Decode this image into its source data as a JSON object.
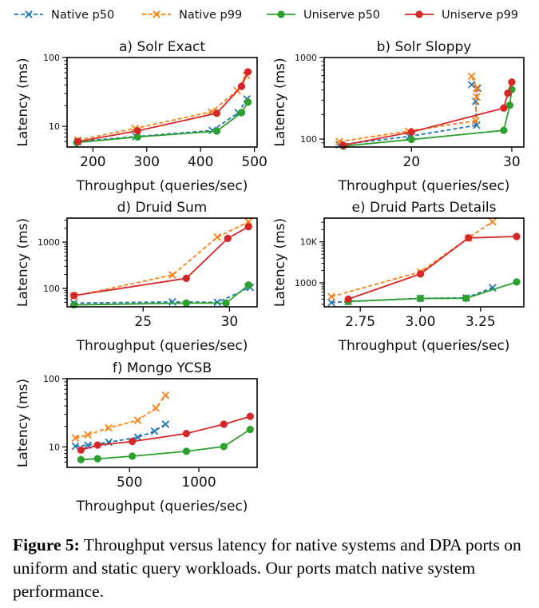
{
  "legend": [
    {
      "name": "Native p50",
      "color": "#1f77b4",
      "dash": true,
      "marker": "x"
    },
    {
      "name": "Native p99",
      "color": "#ff7f0e",
      "dash": true,
      "marker": "x"
    },
    {
      "name": "Uniserve p50",
      "color": "#2ca02c",
      "dash": false,
      "marker": "o"
    },
    {
      "name": "Uniserve p99",
      "color": "#d62728",
      "dash": false,
      "marker": "o"
    }
  ],
  "caption": {
    "label": "Figure 5:",
    "text": " Throughput versus latency for native systems and DPA ports on uniform and static query workloads. Our ports match native system performance."
  },
  "chart_data": [
    {
      "type": "line",
      "title": "a) Solr Exact",
      "xlabel": "Throughput (queries/sec)",
      "ylabel": "Latency (ms)",
      "xscale": "linear",
      "yscale": "log",
      "xlim": [
        152,
        505
      ],
      "ylim": [
        5,
        100
      ],
      "xticks": [
        200,
        300,
        400,
        500
      ],
      "yticks": [
        10,
        100
      ],
      "series": [
        {
          "name": "Native p50",
          "x": [
            172,
            280,
            422,
            470,
            486
          ],
          "y": [
            6.0,
            7.1,
            8.7,
            15.8,
            25
          ]
        },
        {
          "name": "Native p99",
          "x": [
            172,
            278,
            420,
            468,
            485
          ],
          "y": [
            6.3,
            9.3,
            16.2,
            33,
            55
          ]
        },
        {
          "name": "Uniserve p50",
          "x": [
            170,
            283,
            430,
            476,
            488
          ],
          "y": [
            5.8,
            7.0,
            8.5,
            15.8,
            22.5
          ]
        },
        {
          "name": "Uniserve p99",
          "x": [
            172,
            283,
            430,
            476,
            488
          ],
          "y": [
            6.0,
            8.6,
            15.5,
            38,
            62
          ]
        }
      ]
    },
    {
      "type": "line",
      "title": "b) Solr Sloppy",
      "xlabel": "Throughput (queries/sec)",
      "ylabel": "Latency (ms)",
      "xscale": "linear",
      "yscale": "log",
      "xlim": [
        11.3,
        31.2
      ],
      "ylim": [
        80,
        1000
      ],
      "xticks": [
        20,
        30
      ],
      "yticks": [
        100,
        1000
      ],
      "series": [
        {
          "name": "Native p50",
          "x": [
            12.8,
            19.8,
            26.5,
            26.4,
            26.6,
            26.0
          ],
          "y": [
            85,
            108,
            148,
            290,
            420,
            465
          ]
        },
        {
          "name": "Native p99",
          "x": [
            12.8,
            19.7,
            26.4,
            26.5,
            26.5,
            26.0
          ],
          "y": [
            93,
            125,
            168,
            330,
            420,
            590
          ]
        },
        {
          "name": "Uniserve p50",
          "x": [
            13.2,
            20.0,
            29.2,
            29.8,
            30.0
          ],
          "y": [
            82,
            99,
            128,
            260,
            405
          ]
        },
        {
          "name": "Uniserve p99",
          "x": [
            13.2,
            20.0,
            29.2,
            29.6,
            30.0
          ],
          "y": [
            84,
            122,
            240,
            365,
            500
          ]
        }
      ]
    },
    {
      "type": "line",
      "title": "d) Druid Sum",
      "xlabel": "Throughput (queries/sec)",
      "ylabel": "Latency (ms)",
      "xscale": "linear",
      "yscale": "log",
      "xlim": [
        20.6,
        31.6
      ],
      "ylim": [
        40,
        3300
      ],
      "xticks": [
        25,
        30
      ],
      "yticks": [
        100,
        1000
      ],
      "series": [
        {
          "name": "Native p50",
          "x": [
            21.0,
            26.7,
            29.3,
            31.2
          ],
          "y": [
            48,
            51,
            50,
            105
          ]
        },
        {
          "name": "Native p99",
          "x": [
            21.0,
            26.7,
            29.3,
            31.1
          ],
          "y": [
            68,
            195,
            1280,
            2750
          ]
        },
        {
          "name": "Uniserve p50",
          "x": [
            21.0,
            27.5,
            29.8,
            31.1
          ],
          "y": [
            44,
            48,
            48,
            118
          ]
        },
        {
          "name": "Uniserve p99",
          "x": [
            21.0,
            27.5,
            29.9,
            31.1
          ],
          "y": [
            70,
            165,
            1200,
            2150
          ]
        }
      ]
    },
    {
      "type": "line",
      "title": "e) Druid Parts Details",
      "xlabel": "Throughput (queries/sec)",
      "ylabel": "Latency (ms)",
      "xscale": "linear",
      "yscale": "log",
      "xlim": [
        2.6,
        3.43
      ],
      "ylim": [
        260,
        38000
      ],
      "xticks": [
        2.75,
        3.0,
        3.25
      ],
      "xtick_labels": [
        "2.75",
        "3.00",
        "3.25"
      ],
      "yticks": [
        1000,
        10000
      ],
      "ytick_labels": [
        "1000",
        "10K"
      ],
      "series": [
        {
          "name": "Native p50",
          "x": [
            2.63,
            2.7,
            3.0,
            3.19,
            3.3
          ],
          "y": [
            330,
            350,
            420,
            430,
            760
          ]
        },
        {
          "name": "Native p99",
          "x": [
            2.63,
            3.0,
            3.2,
            3.3
          ],
          "y": [
            460,
            1850,
            12400,
            31000
          ]
        },
        {
          "name": "Uniserve p50",
          "x": [
            2.7,
            3.0,
            3.19,
            3.4
          ],
          "y": [
            350,
            415,
            420,
            1050
          ]
        },
        {
          "name": "Uniserve p99",
          "x": [
            2.7,
            3.0,
            3.2,
            3.4
          ],
          "y": [
            400,
            1650,
            12500,
            13500
          ]
        }
      ]
    },
    {
      "type": "line",
      "title": "f) Mongo YCSB",
      "xlabel": "Throughput (queries/sec)",
      "ylabel": "Latency (ms)",
      "xscale": "linear",
      "yscale": "log",
      "xlim": [
        50,
        1420
      ],
      "ylim": [
        5,
        100
      ],
      "xticks": [
        500,
        1000
      ],
      "yticks": [
        10,
        100
      ],
      "series": [
        {
          "name": "Native p50",
          "x": [
            110,
            200,
            350,
            560,
            680,
            760
          ],
          "y": [
            10.2,
            10.6,
            11.7,
            13.8,
            17.0,
            21.5
          ]
        },
        {
          "name": "Native p99",
          "x": [
            110,
            200,
            350,
            560,
            690,
            760
          ],
          "y": [
            13.5,
            15.0,
            19.0,
            24.5,
            37,
            57
          ]
        },
        {
          "name": "Uniserve p50",
          "x": [
            150,
            270,
            520,
            910,
            1180,
            1370
          ],
          "y": [
            6.5,
            6.7,
            7.3,
            8.6,
            10.1,
            18.0
          ]
        },
        {
          "name": "Uniserve p99",
          "x": [
            150,
            270,
            520,
            910,
            1180,
            1370
          ],
          "y": [
            9.0,
            10.6,
            12.0,
            15.7,
            21.5,
            28.0
          ]
        }
      ]
    }
  ]
}
